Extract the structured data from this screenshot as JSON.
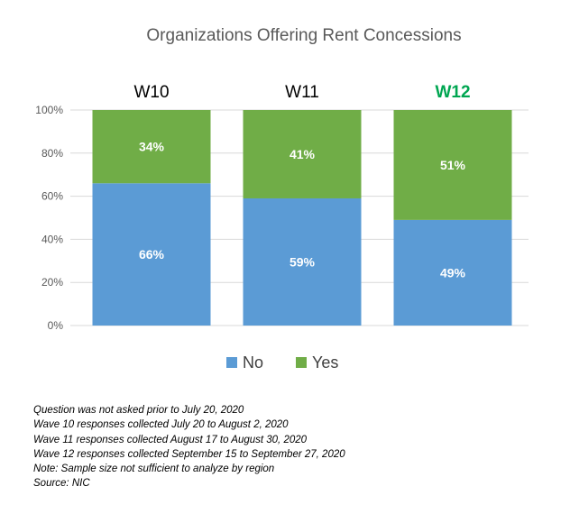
{
  "chart_data": {
    "type": "bar",
    "stacked": true,
    "title": "Organizations Offering Rent Concessions",
    "categories": [
      "W10",
      "W11",
      "W12"
    ],
    "highlighted_category": "W12",
    "series": [
      {
        "name": "No",
        "values": [
          66,
          59,
          49
        ],
        "color": "#5b9bd5"
      },
      {
        "name": "Yes",
        "values": [
          34,
          41,
          51
        ],
        "color": "#70ad47"
      }
    ],
    "y_ticks": [
      "0%",
      "20%",
      "40%",
      "60%",
      "80%",
      "100%"
    ],
    "ylim": [
      0,
      100
    ],
    "grid": true,
    "legend_position": "bottom",
    "data_label_suffix": "%"
  },
  "notes": [
    "Question was not asked prior to July 20, 2020",
    "Wave 10 responses collected July 20 to August 2, 2020",
    "Wave 11 responses collected August 17 to August 30, 2020",
    "Wave 12 responses collected September 15 to September 27, 2020",
    "Note: Sample size not sufficient to analyze by region",
    "Source: NIC"
  ],
  "colors": {
    "highlight": "#00a651",
    "grid": "#d9d9d9"
  }
}
